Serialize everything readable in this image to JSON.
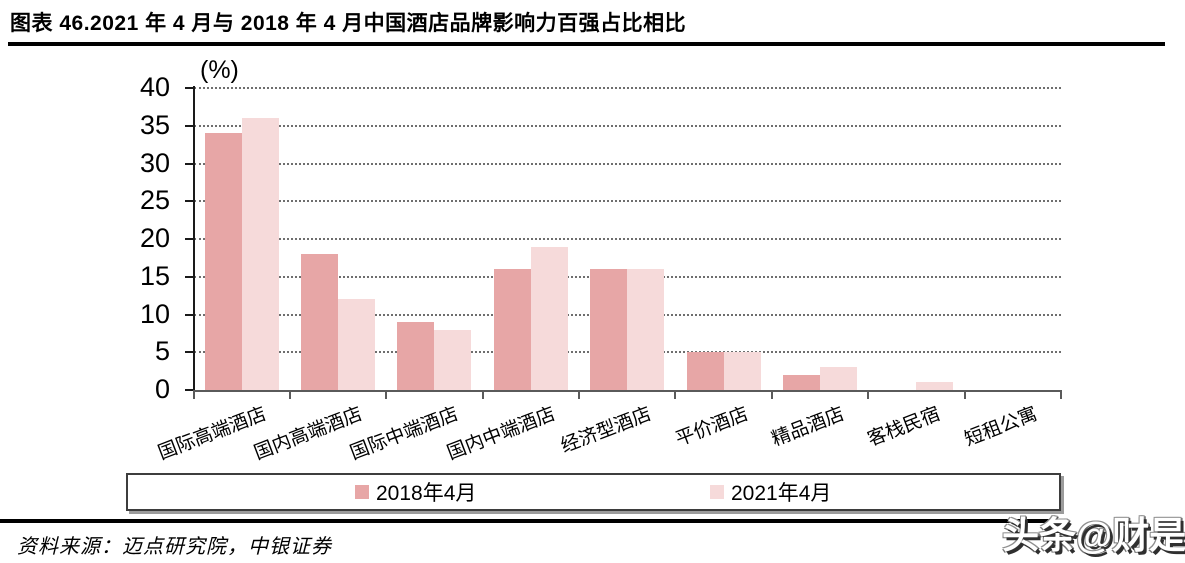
{
  "page": {
    "title": "图表 46.2021 年 4 月与 2018 年 4 月中国酒店品牌影响力百强占比相比",
    "source": "资料来源：迈点研究院，中银证券",
    "watermark": "头条@财是"
  },
  "chart_data": {
    "type": "bar",
    "title": "2021年4月与2018年4月中国酒店品牌影响力百强占比相比",
    "unit_label": "(%)",
    "categories": [
      "国际高端酒店",
      "国内高端酒店",
      "国际中端酒店",
      "国内中端酒店",
      "经济型酒店",
      "平价酒店",
      "精品酒店",
      "客栈民宿",
      "短租公寓"
    ],
    "series": [
      {
        "name": "2018年4月",
        "color": "#e7a6a6",
        "values": [
          34,
          18,
          9,
          16,
          16,
          5,
          2,
          0,
          0
        ]
      },
      {
        "name": "2021年4月",
        "color": "#f6dada",
        "values": [
          36,
          12,
          8,
          19,
          16,
          5,
          3,
          1,
          0
        ]
      }
    ],
    "ylim": [
      0,
      40
    ],
    "ytick_step": 5,
    "grid": "horizontal-dotted",
    "legend_position": "bottom"
  }
}
